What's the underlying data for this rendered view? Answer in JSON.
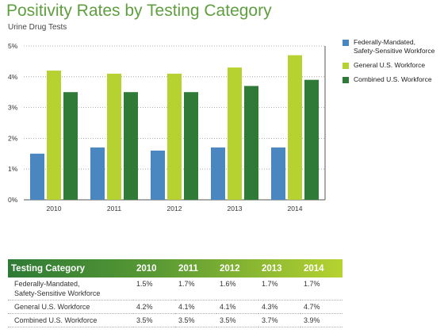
{
  "chart_data": {
    "type": "bar",
    "title": "Positivity Rates by Testing Category",
    "subtitle": "Urine Drug Tests",
    "categories": [
      "2010",
      "2011",
      "2012",
      "2013",
      "2014"
    ],
    "series": [
      {
        "name": "Federally-Mandated, Safety-Sensitive Workforce",
        "color": "#4a86c0",
        "values": [
          1.5,
          1.7,
          1.6,
          1.7,
          1.7
        ]
      },
      {
        "name": "General U.S. Workforce",
        "color": "#b6d230",
        "values": [
          4.2,
          4.1,
          4.1,
          4.3,
          4.7
        ]
      },
      {
        "name": "Combined U.S. Workforce",
        "color": "#2e7a36",
        "values": [
          3.5,
          3.5,
          3.5,
          3.7,
          3.9
        ]
      }
    ],
    "ylim": [
      0,
      5
    ],
    "yticks": [
      "0%",
      "1%",
      "2%",
      "3%",
      "4%",
      "5%"
    ],
    "grid": true,
    "legend_position": "right"
  },
  "legend": {
    "items": [
      {
        "line1": "Federally-Mandated,",
        "line2": "Safety-Sensitive Workforce"
      },
      {
        "line1": "General U.S. Workforce",
        "line2": ""
      },
      {
        "line1": "Combined U.S. Workforce",
        "line2": ""
      }
    ]
  },
  "table": {
    "header": [
      "Testing Category",
      "2010",
      "2011",
      "2012",
      "2013",
      "2014"
    ],
    "header_gradient": [
      "#2e7a36",
      "#b6d230"
    ],
    "rows": [
      {
        "label1": "Federally-Mandated,",
        "label2": "Safety-Sensitive Workforce",
        "values": [
          "1.5%",
          "1.7%",
          "1.6%",
          "1.7%",
          "1.7%"
        ]
      },
      {
        "label1": "General U.S. Workforce",
        "label2": "",
        "values": [
          "4.2%",
          "4.1%",
          "4.1%",
          "4.3%",
          "4.7%"
        ]
      },
      {
        "label1": "Combined U.S. Workforce",
        "label2": "",
        "values": [
          "3.5%",
          "3.5%",
          "3.5%",
          "3.7%",
          "3.9%"
        ]
      }
    ]
  }
}
